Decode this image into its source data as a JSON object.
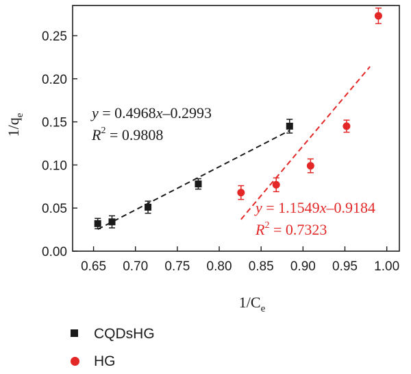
{
  "chart_data": {
    "type": "scatter",
    "xlabel": "1/C",
    "xlabel_sub": "e",
    "ylabel": "1/q",
    "ylabel_sub": "e",
    "xlim": [
      0.625,
      1.015
    ],
    "ylim": [
      0.0,
      0.285
    ],
    "x_ticks": [
      "0.65",
      "0.70",
      "0.75",
      "0.80",
      "0.85",
      "0.90",
      "0.95",
      "1.00"
    ],
    "y_ticks": [
      "0.00",
      "0.05",
      "0.10",
      "0.15",
      "0.20",
      "0.25"
    ],
    "grid": false,
    "legend_position": "below",
    "series": [
      {
        "name": "CQDsHG",
        "color": "#1a1a1a",
        "marker": "square",
        "x": [
          0.655,
          0.672,
          0.715,
          0.775,
          0.884
        ],
        "y": [
          0.032,
          0.034,
          0.051,
          0.078,
          0.145
        ],
        "error": [
          0.006,
          0.007,
          0.007,
          0.006,
          0.008
        ],
        "fit": {
          "x_range": [
            0.655,
            0.884
          ],
          "equation_prefix": "y",
          "equation_body": " = 0.4968",
          "equation_var": "x",
          "equation_tail": "–0.2993",
          "r2_prefix": "R",
          "r2_exp": "2",
          "r2_value": " = 0.9808"
        }
      },
      {
        "name": "HG",
        "color": "#e32626",
        "marker": "circle",
        "x": [
          0.826,
          0.868,
          0.909,
          0.952,
          0.99
        ],
        "y": [
          0.068,
          0.077,
          0.099,
          0.145,
          0.273
        ],
        "error": [
          0.008,
          0.008,
          0.008,
          0.007,
          0.009
        ],
        "fit": {
          "x_range": [
            0.826,
            0.98
          ],
          "equation_prefix": "y",
          "equation_body": " = 1.1549",
          "equation_var": "x",
          "equation_tail": "–0.9184",
          "r2_prefix": "R",
          "r2_exp": "2",
          "r2_value": " = 0.7323"
        }
      }
    ]
  }
}
